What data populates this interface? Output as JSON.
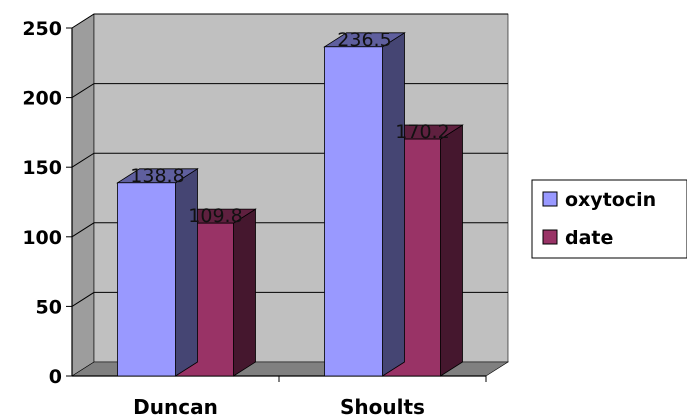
{
  "chart_data": {
    "type": "bar",
    "categories": [
      "Duncan",
      "Shoults"
    ],
    "series": [
      {
        "name": "oxytocin",
        "values": [
          138.8,
          236.5
        ],
        "labels": [
          "138.8",
          "236.5"
        ],
        "color": "#9999ff"
      },
      {
        "name": "date",
        "values": [
          109.8,
          170.2
        ],
        "labels": [
          "109.8",
          "170.2"
        ],
        "color": "#993366"
      }
    ],
    "ylim": [
      0,
      250
    ],
    "yticks": [
      "0",
      "50",
      "100",
      "150",
      "200",
      "250"
    ],
    "ytick_values": [
      0,
      50,
      100,
      150,
      200,
      250
    ],
    "grid": true,
    "style": "3d",
    "legend": "right",
    "wall_color": "#c0c0c0",
    "floor_color": "#808080"
  }
}
